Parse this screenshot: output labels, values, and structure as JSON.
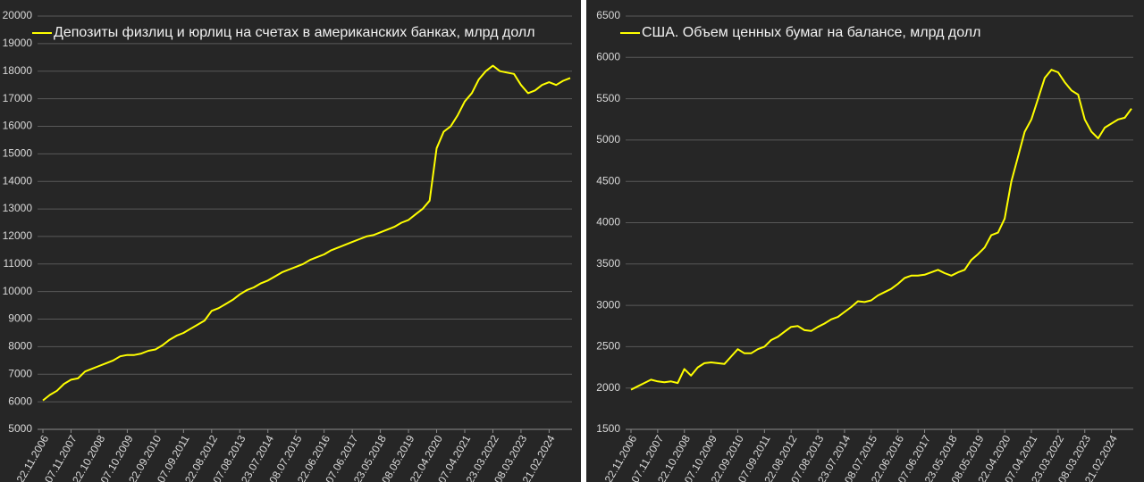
{
  "chart_data": [
    {
      "type": "line",
      "categories": [
        "22.11.2006",
        null,
        null,
        null,
        "07.11.2007",
        null,
        null,
        null,
        "22.10.2008",
        null,
        null,
        null,
        "07.10.2009",
        null,
        null,
        null,
        "22.09.2010",
        null,
        null,
        null,
        "07.09.2011",
        null,
        null,
        null,
        "22.08.2012",
        null,
        null,
        null,
        "07.08.2013",
        null,
        null,
        null,
        "23.07.2014",
        null,
        null,
        null,
        "08.07.2015",
        null,
        null,
        null,
        "22.06.2016",
        null,
        null,
        null,
        "07.06.2017",
        null,
        null,
        null,
        "23.05.2018",
        null,
        null,
        null,
        "08.05.2019",
        null,
        null,
        null,
        "22.04.2020",
        null,
        null,
        null,
        "07.04.2021",
        null,
        null,
        null,
        "23.03.2022",
        null,
        null,
        null,
        "08.03.2023",
        null,
        null,
        null,
        "21.02.2024",
        null,
        null,
        null
      ],
      "series": [
        {
          "name": "Депозиты физлиц и юрлиц на счетах в американских банках, млрд долл",
          "color": "#ffff00",
          "values": [
            6050,
            6250,
            6400,
            6650,
            6800,
            6850,
            7100,
            7200,
            7300,
            7400,
            7500,
            7650,
            7700,
            7700,
            7750,
            7850,
            7900,
            8050,
            8250,
            8400,
            8500,
            8650,
            8800,
            8950,
            9300,
            9400,
            9550,
            9700,
            9900,
            10050,
            10150,
            10300,
            10400,
            10550,
            10700,
            10800,
            10900,
            11000,
            11150,
            11250,
            11350,
            11500,
            11600,
            11700,
            11800,
            11900,
            12000,
            12050,
            12150,
            12250,
            12350,
            12500,
            12600,
            12800,
            13000,
            13300,
            15200,
            15800,
            16000,
            16400,
            16900,
            17200,
            17700,
            18000,
            18200,
            18000,
            17950,
            17900,
            17500,
            17200,
            17300,
            17500,
            17600,
            17500,
            17650,
            17750
          ]
        }
      ],
      "ylim": [
        5000,
        20000
      ],
      "yticks": [
        5000,
        6000,
        7000,
        8000,
        9000,
        10000,
        11000,
        12000,
        13000,
        14000,
        15000,
        16000,
        17000,
        18000,
        19000,
        20000
      ],
      "grid": true
    },
    {
      "type": "line",
      "categories": [
        "22.11.2006",
        null,
        null,
        null,
        "07.11.2007",
        null,
        null,
        null,
        "22.10.2008",
        null,
        null,
        null,
        "07.10.2009",
        null,
        null,
        null,
        "22.09.2010",
        null,
        null,
        null,
        "07.09.2011",
        null,
        null,
        null,
        "22.08.2012",
        null,
        null,
        null,
        "07.08.2013",
        null,
        null,
        null,
        "23.07.2014",
        null,
        null,
        null,
        "08.07.2015",
        null,
        null,
        null,
        "22.06.2016",
        null,
        null,
        null,
        "07.06.2017",
        null,
        null,
        null,
        "23.05.2018",
        null,
        null,
        null,
        "08.05.2019",
        null,
        null,
        null,
        "22.04.2020",
        null,
        null,
        null,
        "07.04.2021",
        null,
        null,
        null,
        "23.03.2022",
        null,
        null,
        null,
        "08.03.2023",
        null,
        null,
        null,
        "21.02.2024",
        null,
        null,
        null
      ],
      "series": [
        {
          "name": "США. Объем ценных бумаг на балансе, млрд долл",
          "color": "#ffff00",
          "values": [
            1980,
            2020,
            2060,
            2100,
            2080,
            2070,
            2080,
            2060,
            2230,
            2150,
            2250,
            2300,
            2310,
            2300,
            2290,
            2380,
            2470,
            2420,
            2420,
            2470,
            2500,
            2580,
            2620,
            2680,
            2740,
            2750,
            2700,
            2690,
            2740,
            2780,
            2830,
            2860,
            2920,
            2980,
            3050,
            3040,
            3060,
            3120,
            3160,
            3200,
            3260,
            3330,
            3360,
            3360,
            3370,
            3400,
            3430,
            3390,
            3360,
            3400,
            3430,
            3550,
            3620,
            3700,
            3850,
            3880,
            4050,
            4500,
            4800,
            5100,
            5250,
            5500,
            5750,
            5850,
            5820,
            5700,
            5600,
            5550,
            5250,
            5100,
            5020,
            5150,
            5200,
            5250,
            5270,
            5380
          ]
        }
      ],
      "ylim": [
        1500,
        6500
      ],
      "yticks": [
        1500,
        2000,
        2500,
        3000,
        3500,
        4000,
        4500,
        5000,
        5500,
        6000,
        6500
      ],
      "grid": true
    }
  ]
}
